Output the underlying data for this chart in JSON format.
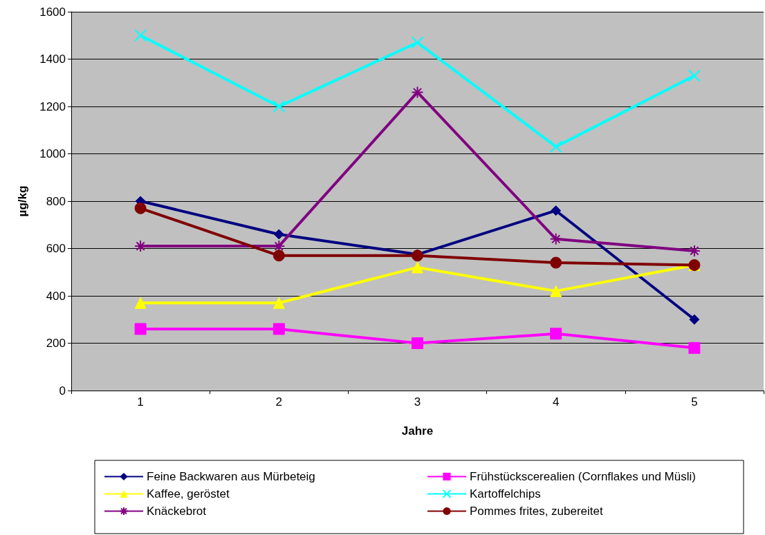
{
  "chart_data": {
    "type": "line",
    "xlabel": "Jahre",
    "ylabel": "µg/kg",
    "categories": [
      "1",
      "2",
      "3",
      "4",
      "5"
    ],
    "ylim": [
      0,
      1600
    ],
    "yticks": [
      0,
      200,
      400,
      600,
      800,
      1000,
      1200,
      1400,
      1600
    ],
    "grid": "y",
    "legend": "bottom",
    "series": [
      {
        "name": "Feine Backwaren aus Mürbeteig",
        "color": "#000080",
        "marker": "diamond",
        "values": [
          800,
          660,
          575,
          760,
          300
        ]
      },
      {
        "name": "Frühstückscerealien (Cornflakes und Müsli)",
        "color": "#ff00ff",
        "marker": "square",
        "values": [
          260,
          260,
          200,
          240,
          180
        ]
      },
      {
        "name": "Kaffee, geröstet",
        "color": "#ffff00",
        "marker": "triangle",
        "values": [
          370,
          370,
          520,
          420,
          530
        ]
      },
      {
        "name": "Kartoffelchips",
        "color": "#00ffff",
        "marker": "cross",
        "values": [
          1500,
          1200,
          1470,
          1030,
          1330
        ]
      },
      {
        "name": "Knäckebrot",
        "color": "#800080",
        "marker": "star",
        "values": [
          610,
          610,
          1260,
          640,
          590
        ]
      },
      {
        "name": "Pommes frites, zubereitet",
        "color": "#800000",
        "marker": "circle",
        "values": [
          770,
          570,
          570,
          540,
          530
        ]
      }
    ]
  }
}
